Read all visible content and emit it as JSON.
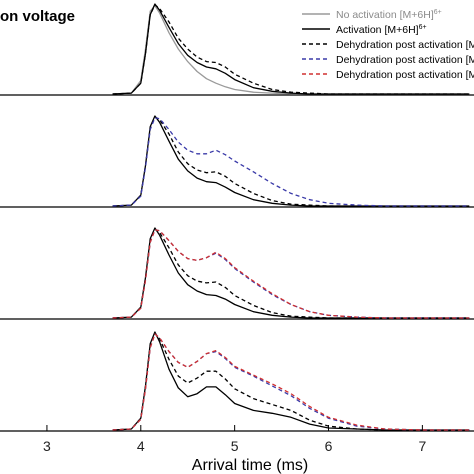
{
  "chart_data": {
    "type": "line",
    "title": "on voltage",
    "xlabel": "Arrival time (ms)",
    "ylabel": "",
    "xlim": [
      2.5,
      7.55
    ],
    "xticks": [
      "3",
      "4",
      "5",
      "6",
      "7"
    ],
    "grid": false,
    "legend_position": "top-right",
    "legend": [
      {
        "label": "No activation [M+6H]",
        "sup": "6+",
        "color": "#9a9a9a",
        "dash": "solid"
      },
      {
        "label": "Activation [M+6H]",
        "sup": "6+",
        "color": "#000000",
        "dash": "solid"
      },
      {
        "label": "Dehydration post activation [M",
        "sup": "",
        "color": "#000000",
        "dash": "dashed"
      },
      {
        "label": "Dehydration post activation [M",
        "sup": "",
        "color": "#3a3aa8",
        "dash": "dashed"
      },
      {
        "label": "Dehydration post activation [M",
        "sup": "",
        "color": "#d03030",
        "dash": "dashed"
      }
    ],
    "x": [
      3.7,
      3.9,
      4.0,
      4.05,
      4.1,
      4.15,
      4.2,
      4.3,
      4.4,
      4.5,
      4.6,
      4.7,
      4.8,
      4.9,
      5.0,
      5.2,
      5.4,
      5.6,
      5.8,
      6.0,
      6.3,
      6.6,
      7.0,
      7.5
    ],
    "panels": [
      {
        "series": [
          {
            "name": "No activation [M+6H]6+",
            "color": "#9a9a9a",
            "dash": "solid",
            "values": [
              0,
              0.01,
              0.15,
              0.5,
              0.92,
              0.98,
              0.9,
              0.68,
              0.5,
              0.36,
              0.25,
              0.17,
              0.12,
              0.08,
              0.05,
              0.02,
              0.01,
              0,
              0,
              0,
              0,
              0,
              0,
              0
            ]
          },
          {
            "name": "Activation [M+6H]6+",
            "color": "#000000",
            "dash": "solid",
            "values": [
              0,
              0.01,
              0.12,
              0.45,
              0.88,
              1.0,
              0.93,
              0.74,
              0.56,
              0.43,
              0.35,
              0.3,
              0.28,
              0.23,
              0.16,
              0.07,
              0.03,
              0.01,
              0,
              0,
              0,
              0,
              0,
              0
            ]
          },
          {
            "name": "Dehydration post activation (black)",
            "color": "#000000",
            "dash": "dashed",
            "values": [
              0,
              0.01,
              0.12,
              0.45,
              0.88,
              0.99,
              0.95,
              0.8,
              0.62,
              0.5,
              0.41,
              0.36,
              0.35,
              0.3,
              0.22,
              0.12,
              0.05,
              0.02,
              0.01,
              0,
              0,
              0,
              0,
              0
            ]
          }
        ]
      },
      {
        "series": [
          {
            "name": "Activation [M+6H]6+",
            "color": "#000000",
            "dash": "solid",
            "values": [
              0,
              0.01,
              0.12,
              0.45,
              0.88,
              1.0,
              0.93,
              0.72,
              0.52,
              0.39,
              0.31,
              0.27,
              0.26,
              0.21,
              0.15,
              0.07,
              0.03,
              0.01,
              0,
              0,
              0,
              0,
              0,
              0
            ]
          },
          {
            "name": "Dehydration post activation (black)",
            "color": "#000000",
            "dash": "dashed",
            "values": [
              0,
              0.01,
              0.12,
              0.45,
              0.86,
              0.99,
              0.96,
              0.8,
              0.6,
              0.47,
              0.4,
              0.37,
              0.38,
              0.33,
              0.25,
              0.14,
              0.06,
              0.02,
              0.01,
              0,
              0,
              0,
              0,
              0
            ]
          },
          {
            "name": "Dehydration post activation (blue)",
            "color": "#3a3aa8",
            "dash": "dashed",
            "values": [
              0,
              0.01,
              0.11,
              0.43,
              0.85,
              0.98,
              0.97,
              0.85,
              0.71,
              0.62,
              0.58,
              0.58,
              0.62,
              0.57,
              0.5,
              0.38,
              0.25,
              0.14,
              0.07,
              0.03,
              0.01,
              0,
              0,
              0
            ]
          }
        ]
      },
      {
        "series": [
          {
            "name": "Activation [M+6H]6+",
            "color": "#000000",
            "dash": "solid",
            "values": [
              0,
              0.01,
              0.12,
              0.45,
              0.88,
              1.0,
              0.92,
              0.7,
              0.5,
              0.37,
              0.3,
              0.26,
              0.25,
              0.21,
              0.15,
              0.07,
              0.03,
              0.01,
              0,
              0,
              0,
              0,
              0,
              0
            ]
          },
          {
            "name": "Dehydration post activation (black)",
            "color": "#000000",
            "dash": "dashed",
            "values": [
              0,
              0.01,
              0.12,
              0.45,
              0.86,
              0.99,
              0.95,
              0.78,
              0.59,
              0.47,
              0.41,
              0.39,
              0.4,
              0.34,
              0.25,
              0.14,
              0.06,
              0.02,
              0.01,
              0,
              0,
              0,
              0,
              0
            ]
          },
          {
            "name": "Dehydration post activation (blue)",
            "color": "#3a3aa8",
            "dash": "dashed",
            "values": [
              0,
              0.01,
              0.11,
              0.42,
              0.84,
              0.98,
              0.97,
              0.86,
              0.74,
              0.66,
              0.64,
              0.67,
              0.72,
              0.65,
              0.55,
              0.4,
              0.26,
              0.15,
              0.07,
              0.03,
              0.01,
              0,
              0,
              0
            ]
          },
          {
            "name": "Dehydration post activation (red)",
            "color": "#d03030",
            "dash": "dashed",
            "values": [
              0,
              0.01,
              0.11,
              0.42,
              0.84,
              0.98,
              0.97,
              0.86,
              0.74,
              0.66,
              0.64,
              0.67,
              0.73,
              0.66,
              0.56,
              0.41,
              0.27,
              0.15,
              0.07,
              0.03,
              0.01,
              0,
              0,
              0
            ]
          }
        ]
      },
      {
        "series": [
          {
            "name": "Activation [M+6H]6+",
            "color": "#000000",
            "dash": "solid",
            "values": [
              0,
              0.01,
              0.12,
              0.45,
              0.88,
              1.0,
              0.9,
              0.62,
              0.43,
              0.34,
              0.37,
              0.44,
              0.44,
              0.36,
              0.27,
              0.2,
              0.17,
              0.13,
              0.06,
              0.02,
              0.01,
              0,
              0,
              0
            ]
          },
          {
            "name": "Dehydration post activation (black)",
            "color": "#000000",
            "dash": "dashed",
            "values": [
              0,
              0.01,
              0.12,
              0.44,
              0.86,
              0.99,
              0.93,
              0.72,
              0.55,
              0.48,
              0.53,
              0.6,
              0.6,
              0.52,
              0.42,
              0.32,
              0.26,
              0.2,
              0.1,
              0.04,
              0.01,
              0,
              0,
              0
            ]
          },
          {
            "name": "Dehydration post activation (blue)",
            "color": "#3a3aa8",
            "dash": "dashed",
            "values": [
              0,
              0.01,
              0.11,
              0.42,
              0.84,
              0.98,
              0.94,
              0.8,
              0.69,
              0.64,
              0.7,
              0.78,
              0.8,
              0.73,
              0.64,
              0.55,
              0.45,
              0.35,
              0.22,
              0.12,
              0.04,
              0.01,
              0,
              0
            ]
          },
          {
            "name": "Dehydration post activation (red)",
            "color": "#d03030",
            "dash": "dashed",
            "values": [
              0,
              0.01,
              0.11,
              0.42,
              0.84,
              0.98,
              0.94,
              0.8,
              0.69,
              0.64,
              0.7,
              0.78,
              0.81,
              0.74,
              0.65,
              0.56,
              0.47,
              0.37,
              0.24,
              0.13,
              0.05,
              0.01,
              0,
              0
            ]
          }
        ]
      }
    ]
  }
}
